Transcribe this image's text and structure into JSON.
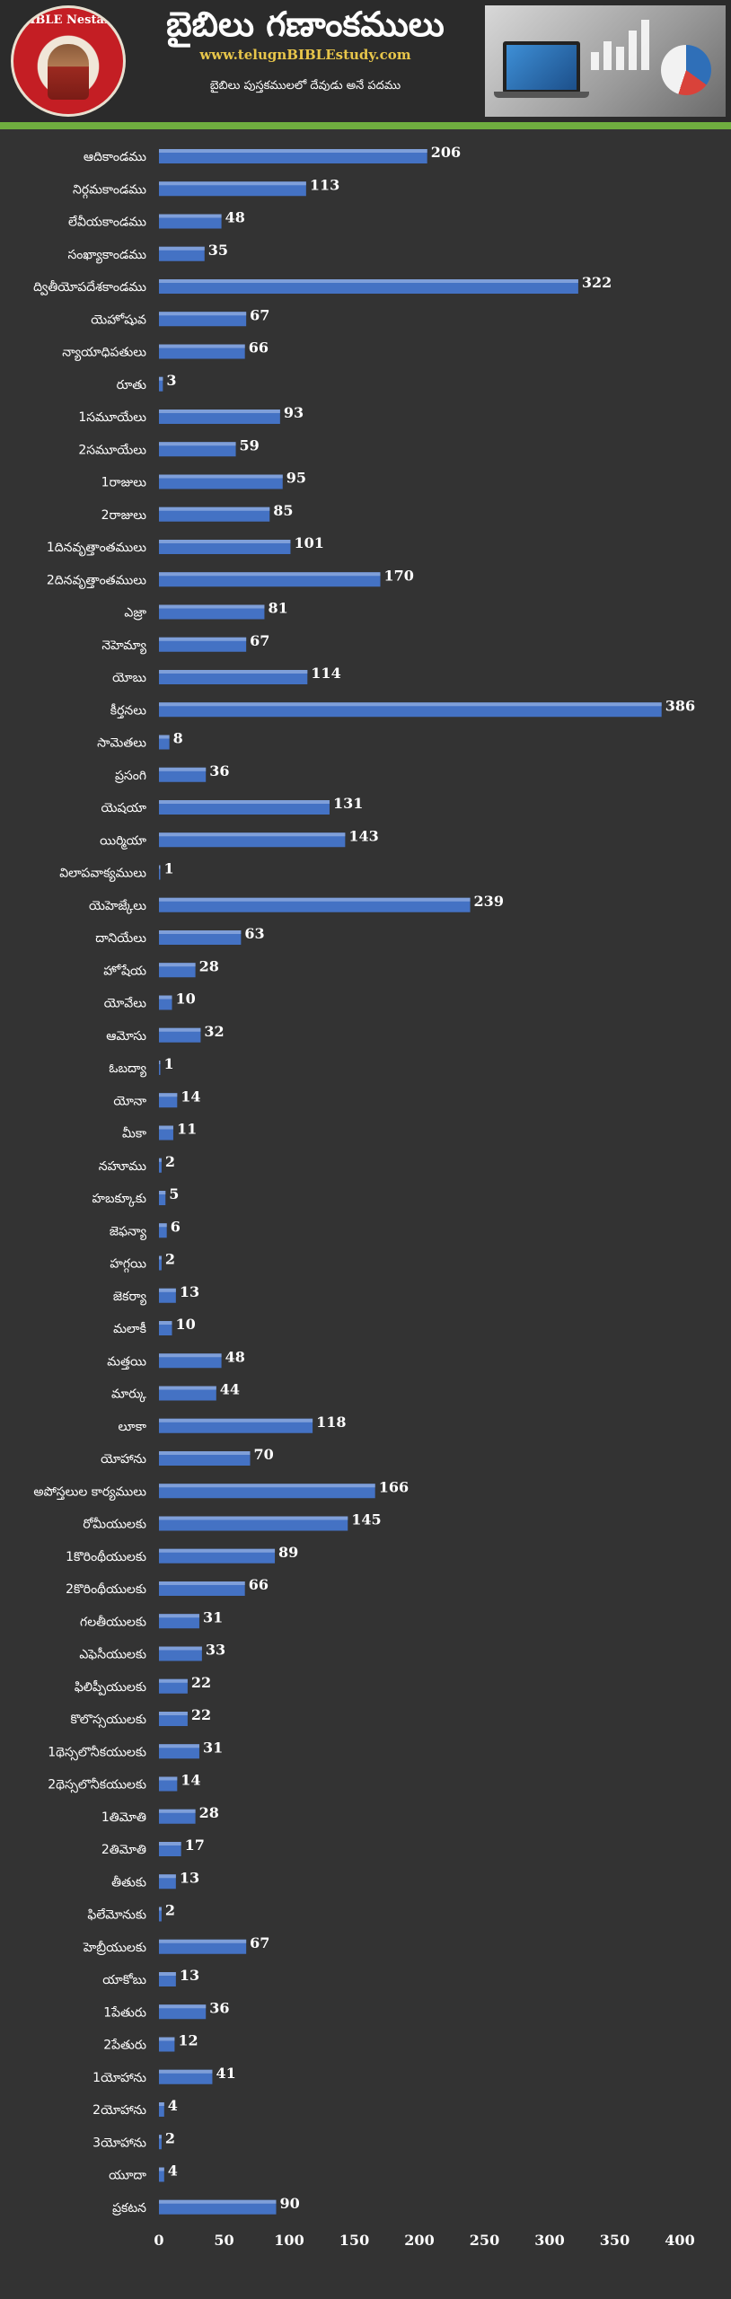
{
  "header": {
    "title": "బైబిలు గణాంకములు",
    "site": "www.telugnBIBLEstudy.com",
    "subtitle": "బైబిలు పుస్తకములలో దేవుడు అనే పదము",
    "logo_text": "BIBLE Nestam"
  },
  "colors": {
    "background": "#333333",
    "bar": "#4472c4",
    "accent_line": "#6fae3f",
    "site_text": "#e8c64a",
    "text": "#ffffff"
  },
  "chart_data": {
    "type": "bar",
    "orientation": "horizontal",
    "xlim": [
      0,
      400
    ],
    "xticks": [
      0,
      50,
      100,
      150,
      200,
      250,
      300,
      350,
      400
    ],
    "grid": false,
    "categories": [
      "ఆదికాండము",
      "నిర్గమకాండము",
      "లేవీయకాండము",
      "సంఖ్యాకాండము",
      "ద్వితీయోపదేశకాండము",
      "యెహోషువ",
      "న్యాయాధిపతులు",
      "రూతు",
      "1సమూయేలు",
      "2సమూయేలు",
      "1రాజులు",
      "2రాజులు",
      "1దినవృత్తాంతములు",
      "2దినవృత్తాంతములు",
      "ఎజ్రా",
      "నెహెమ్యా",
      "యోబు",
      "కీర్తనలు",
      "సామెతలు",
      "ప్రసంగి",
      "యెషయా",
      "యిర్మియా",
      "విలాపవాక్యములు",
      "యెహెజ్కేలు",
      "దానియేలు",
      "హోషేయ",
      "యోవేలు",
      "ఆమోసు",
      "ఓబద్యా",
      "యోనా",
      "మీకా",
      "నహూము",
      "హబక్కూకు",
      "జెఫన్యా",
      "హగ్గయి",
      "జెకర్యా",
      "మలాకీ",
      "మత్తయి",
      "మార్కు",
      "లూకా",
      "యోహాను",
      "అపోస్తలుల కార్యములు",
      "రోమీయులకు",
      "1కొరింథీయులకు",
      "2కొరింథీయులకు",
      "గలతీయులకు",
      "ఎఫెసీయులకు",
      "ఫిలిప్పీయులకు",
      "కొలొస్సయులకు",
      "1థెస్సలొనీకయులకు",
      "2థెస్సలొనీకయులకు",
      "1తిమోతి",
      "2తిమోతి",
      "తీతుకు",
      "ఫిలేమోనుకు",
      "హెబ్రీయులకు",
      "యాకోబు",
      "1పేతురు",
      "2పేతురు",
      "1యోహాను",
      "2యోహాను",
      "3యోహాను",
      "యూదా",
      "ప్రకటన"
    ],
    "values": [
      206,
      113,
      48,
      35,
      322,
      67,
      66,
      3,
      93,
      59,
      95,
      85,
      101,
      170,
      81,
      67,
      114,
      386,
      8,
      36,
      131,
      143,
      1,
      239,
      63,
      28,
      10,
      32,
      1,
      14,
      11,
      2,
      5,
      6,
      2,
      13,
      10,
      48,
      44,
      118,
      70,
      166,
      145,
      89,
      66,
      31,
      33,
      22,
      22,
      31,
      14,
      28,
      17,
      13,
      2,
      67,
      13,
      36,
      12,
      41,
      4,
      2,
      4,
      90
    ]
  }
}
